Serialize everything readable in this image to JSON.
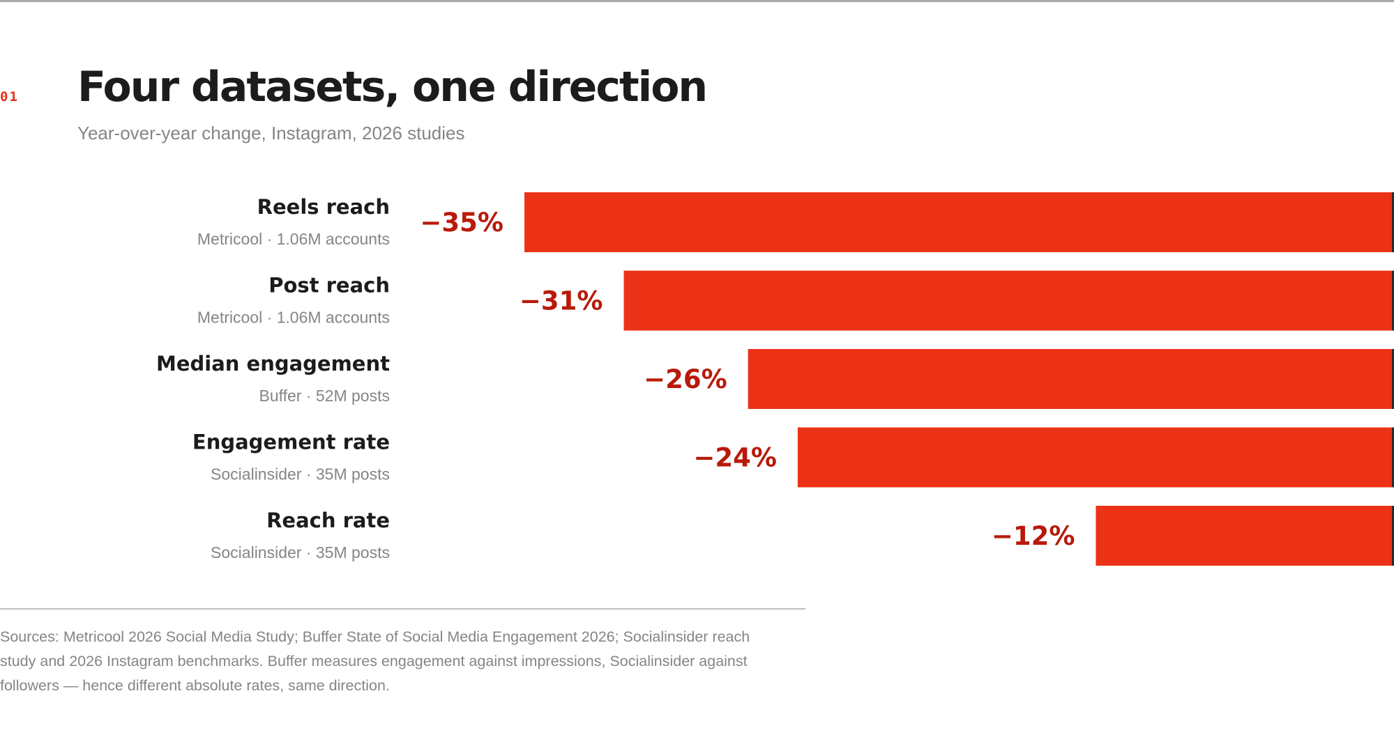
{
  "section_number": "01",
  "title": "Four datasets, one direction",
  "subtitle": "Year-over-year change, Instagram, 2026 studies",
  "colors": {
    "bar": "#ec3216",
    "value_label": "#b81a0a",
    "bar_end_line": "#2a2a2a"
  },
  "chart_data": {
    "type": "bar",
    "orientation": "horizontal",
    "categories": [
      "Reels reach",
      "Post reach",
      "Median engagement",
      "Engagement rate",
      "Reach rate"
    ],
    "sources": [
      "Metricool · 1.06M accounts",
      "Metricool · 1.06M accounts",
      "Buffer · 52M posts",
      "Socialinsider · 35M posts",
      "Socialinsider · 35M posts"
    ],
    "values": [
      -35,
      -31,
      -26,
      -24,
      -12
    ],
    "value_labels": [
      "−35%",
      "−31%",
      "−26%",
      "−24%",
      "−12%"
    ],
    "unit": "%",
    "xlim": [
      -35,
      0
    ],
    "grid": false,
    "legend": "none"
  },
  "footnote": "Sources: Metricool 2026 Social Media Study; Buffer State of Social Media Engagement 2026; Socialinsider reach study and 2026 Instagram benchmarks. Buffer measures engagement against impressions, Socialinsider against followers — hence different absolute rates, same direction."
}
